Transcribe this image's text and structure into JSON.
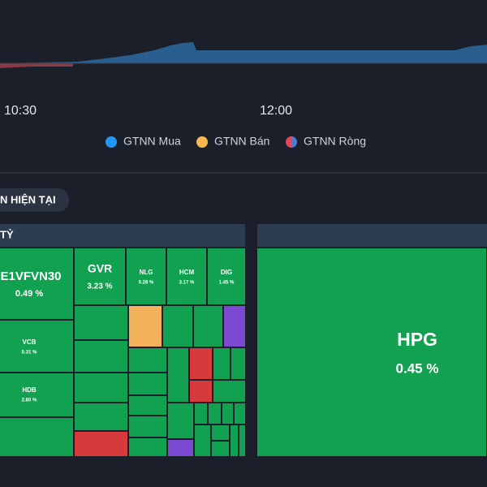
{
  "chart": {
    "x_labels": [
      "10:30",
      "12:00"
    ],
    "legend": [
      "GTNN Mua",
      "GTNN Bán",
      "GTNN Ròng"
    ]
  },
  "tab": {
    "label": "N HIỆN TẠI"
  },
  "left_panel": {
    "header": "TỶ",
    "tiles": [
      {
        "label": "E1VFVN30",
        "change": "0.49 %"
      },
      {
        "label": "VCB",
        "change": "0.31 %"
      },
      {
        "label": "HDB",
        "change": "2.80 %"
      },
      {
        "label": "GVR",
        "change": "3.23 %"
      },
      {
        "label": "NLG",
        "change": "0.28 %"
      },
      {
        "label": "HCM",
        "change": "3.17 %"
      },
      {
        "label": "DIG",
        "change": "1.45 %"
      }
    ]
  },
  "right_panel": {
    "tiles": [
      {
        "label": "HPG",
        "change": "0.45 %"
      }
    ]
  }
}
